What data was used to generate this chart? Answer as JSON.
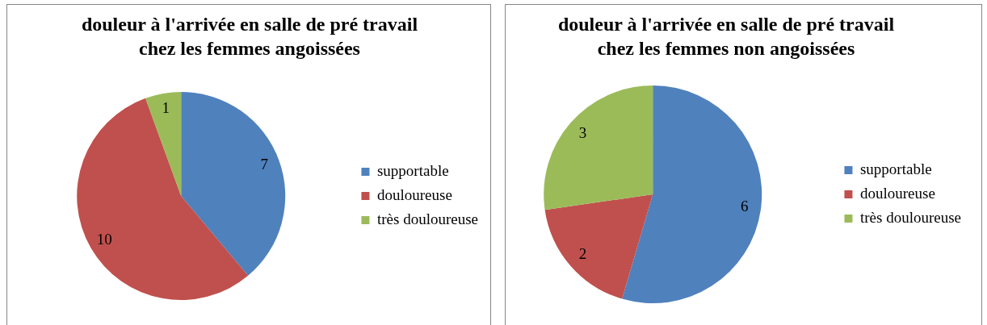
{
  "chart_data": [
    {
      "type": "pie",
      "title": "douleur à l'arrivée en salle de pré travail chez les femmes angoissées",
      "categories": [
        "supportable",
        "douloureuse",
        "très douloureuse"
      ],
      "values": [
        7,
        10,
        1
      ],
      "colors": [
        "#4f81bd",
        "#c0504d",
        "#9bbb59"
      ],
      "data_labels": true,
      "legend": "right"
    },
    {
      "type": "pie",
      "title": "douleur à l'arrivée en salle de pré travail chez les femmes non angoissées",
      "categories": [
        "supportable",
        "douloureuse",
        "très douloureuse"
      ],
      "values": [
        6,
        2,
        3
      ],
      "colors": [
        "#4f81bd",
        "#c0504d",
        "#9bbb59"
      ],
      "data_labels": true,
      "legend": "right"
    }
  ]
}
